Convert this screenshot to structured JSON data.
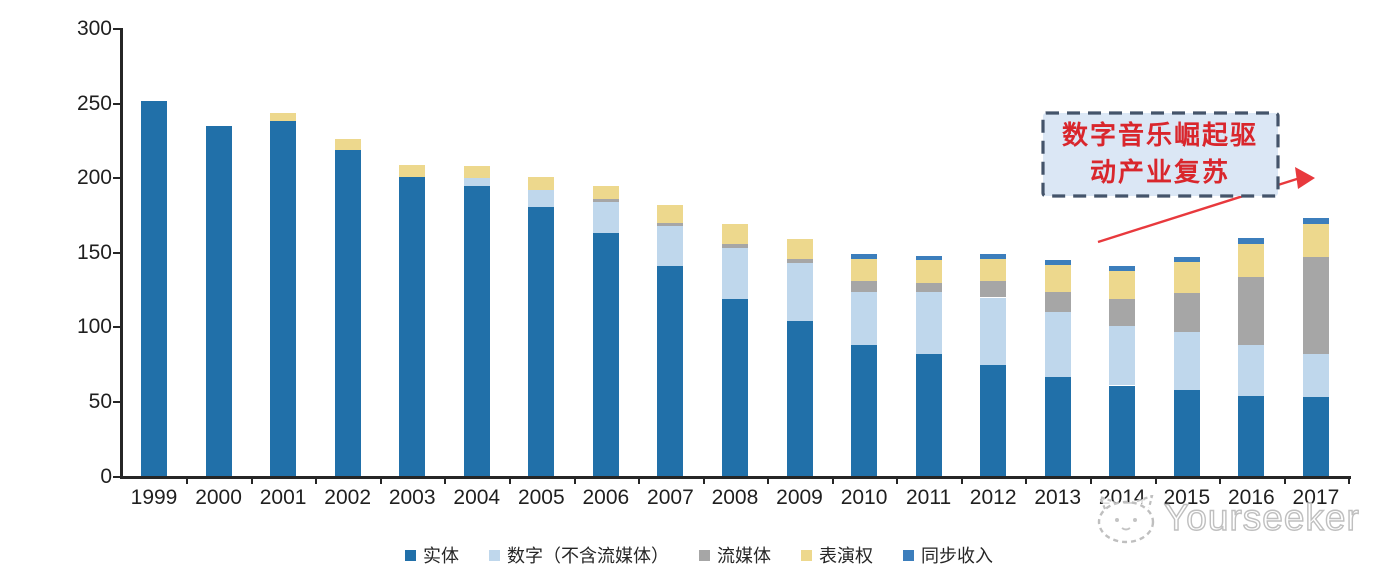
{
  "chart_data": {
    "type": "bar",
    "stacked": true,
    "title": "",
    "xlabel": "",
    "ylabel": "",
    "ylim": [
      0,
      300
    ],
    "y_tick_labels": [
      "0",
      "50",
      "100",
      "150",
      "200",
      "250",
      "300"
    ],
    "grid": false,
    "legend_position": "bottom",
    "categories": [
      "1999",
      "2000",
      "2001",
      "2002",
      "2003",
      "2004",
      "2005",
      "2006",
      "2007",
      "2008",
      "2009",
      "2010",
      "2011",
      "2012",
      "2013",
      "2014",
      "2015",
      "2016",
      "2017"
    ],
    "series": [
      {
        "name": "实体",
        "color": "#2170A9",
        "values": [
          252,
          235,
          238,
          219,
          201,
          195,
          181,
          163,
          141,
          119,
          104,
          88,
          82,
          75,
          67,
          61,
          58,
          54,
          53
        ]
      },
      {
        "name": "数字（不含流媒体）",
        "color": "#BFD7EC",
        "values": [
          0,
          0,
          0,
          0,
          0,
          5,
          11,
          21,
          27,
          34,
          39,
          36,
          42,
          45,
          43,
          40,
          39,
          34,
          29
        ]
      },
      {
        "name": "流媒体",
        "color": "#A6A6A6",
        "values": [
          0,
          0,
          0,
          0,
          0,
          0,
          0,
          2,
          2,
          3,
          3,
          7,
          6,
          11,
          14,
          18,
          26,
          46,
          65
        ]
      },
      {
        "name": "表演权",
        "color": "#EDD88D",
        "values": [
          0,
          0,
          6,
          7,
          8,
          8,
          9,
          9,
          12,
          13,
          13,
          15,
          15,
          15,
          18,
          19,
          21,
          22,
          22
        ]
      },
      {
        "name": "同步收入",
        "color": "#3C7EBC",
        "values": [
          0,
          0,
          0,
          0,
          0,
          0,
          0,
          0,
          0,
          0,
          0,
          3,
          3,
          3,
          3,
          3,
          3,
          4,
          4
        ]
      }
    ]
  },
  "annotation": {
    "line1": "数字音乐崛起驱",
    "line2": "动产业复苏",
    "text_color": "#D9262C",
    "box_fill": "#DBE7F5",
    "box_border_color": "#44546A",
    "arrow_color": "#E8393D"
  },
  "watermark": {
    "text": "Yourseeker",
    "color": "#BFBFBF"
  }
}
